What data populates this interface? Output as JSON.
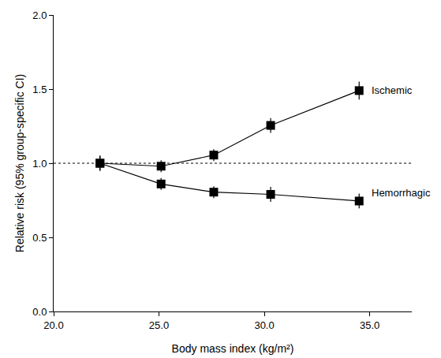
{
  "chart_data": {
    "type": "line",
    "x_label": "Body mass index (kg/m²)",
    "y_label": "Relative risk (95% group-specific CI)",
    "marker": "square",
    "series": [
      {
        "name": "Ischemic",
        "color": "#000000",
        "x": [
          22.2,
          25.1,
          27.6,
          30.3,
          34.5
        ],
        "values": [
          1.0,
          0.98,
          1.055,
          1.255,
          1.49
        ],
        "error": [
          0.05,
          0.04,
          0.04,
          0.05,
          0.06
        ]
      },
      {
        "name": "Hemorrhagic",
        "color": "#000000",
        "x": [
          22.2,
          25.1,
          27.6,
          30.3,
          34.5
        ],
        "values": [
          1.0,
          0.86,
          0.805,
          0.79,
          0.745
        ],
        "error": [
          0.05,
          0.04,
          0.04,
          0.05,
          0.05
        ]
      }
    ],
    "reference_line": 1.0,
    "xlim": [
      20.0,
      37.0
    ],
    "xticks": [
      {
        "value": 20,
        "label": "20.0"
      },
      {
        "value": 25,
        "label": "25.0"
      },
      {
        "value": 30,
        "label": "30.0"
      },
      {
        "value": 35,
        "label": "35.0"
      }
    ],
    "ylim": [
      0.0,
      2.0
    ],
    "yticks": [
      {
        "value": 0,
        "label": "0.0"
      },
      {
        "value": 0.5,
        "label": "0.5"
      },
      {
        "value": 1,
        "label": "1.0"
      },
      {
        "value": 1.5,
        "label": "1.5"
      },
      {
        "value": 2,
        "label": "2.0"
      }
    ],
    "grid": false
  }
}
